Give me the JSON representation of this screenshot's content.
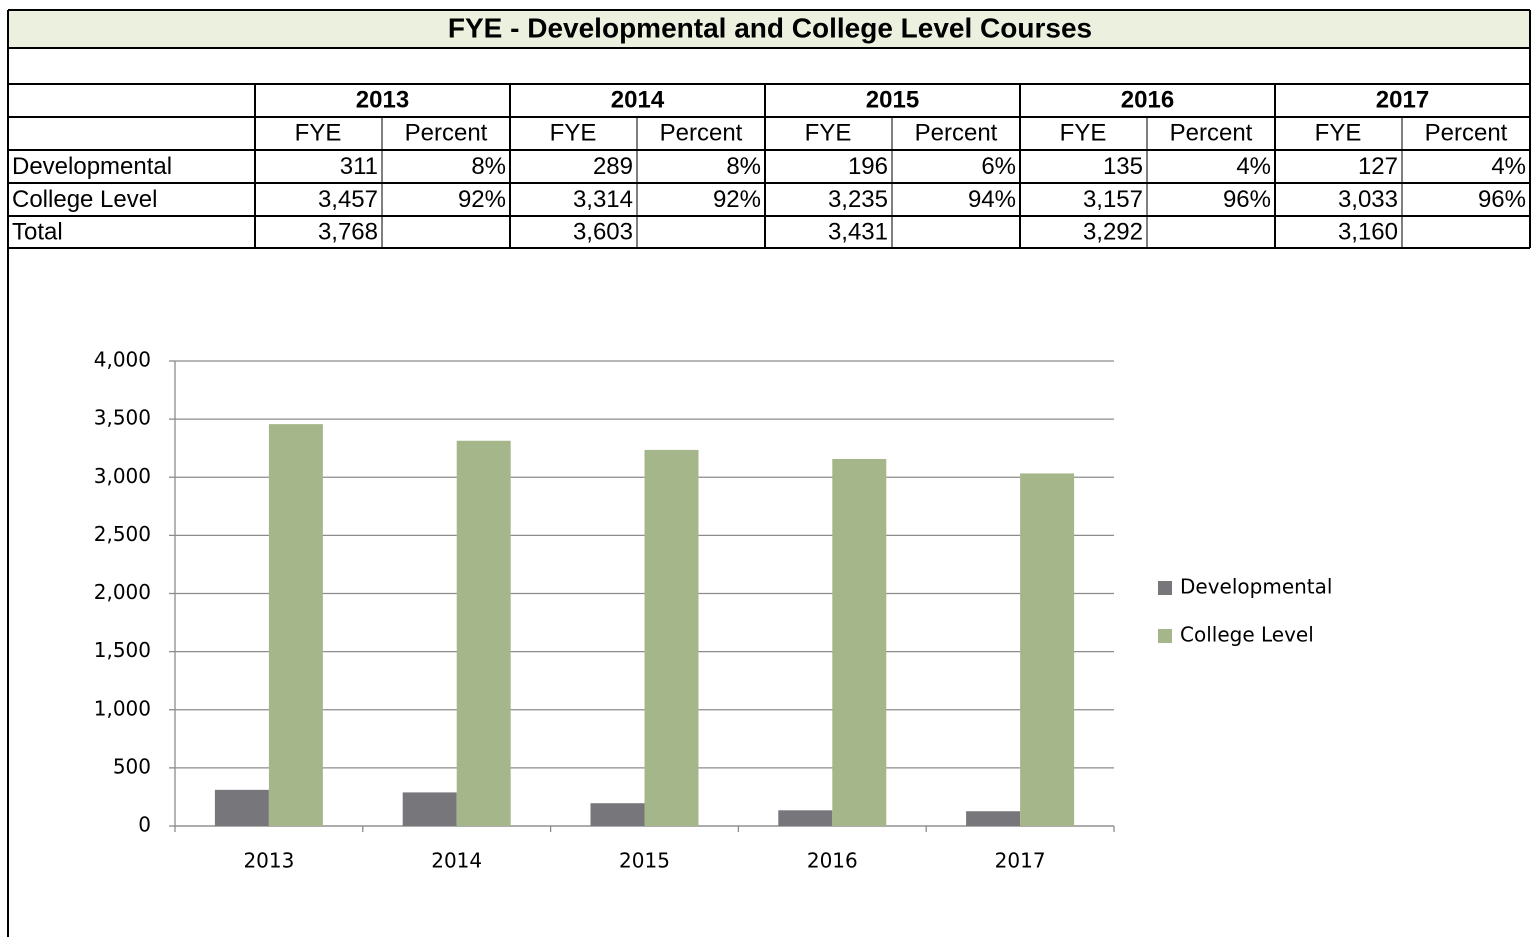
{
  "table": {
    "title": "FYE - Developmental and College Level Courses",
    "years": [
      "2013",
      "2014",
      "2015",
      "2016",
      "2017"
    ],
    "columns": [
      "FYE",
      "Percent",
      "FYE",
      "Percent",
      "FYE",
      "Percent",
      "FYE",
      "Percent",
      "FYE",
      "Percent"
    ],
    "rows": [
      {
        "label": "Developmental",
        "fye": [
          "311",
          "289",
          "196",
          "135",
          "127"
        ],
        "percent": [
          "8%",
          "8%",
          "6%",
          "4%",
          "4%"
        ]
      },
      {
        "label": "College Level",
        "fye": [
          "3,457",
          "3,314",
          "3,235",
          "3,157",
          "3,033"
        ],
        "percent": [
          "92%",
          "92%",
          "94%",
          "96%",
          "96%"
        ]
      },
      {
        "label": "Total",
        "fye": [
          "3,768",
          "3,603",
          "3,431",
          "3,292",
          "3,160"
        ]
      }
    ]
  },
  "chart_data": {
    "type": "bar",
    "categories": [
      "2013",
      "2014",
      "2015",
      "2016",
      "2017"
    ],
    "series": [
      {
        "name": "Developmental",
        "color": "#77767b",
        "values": [
          311,
          289,
          196,
          135,
          127
        ]
      },
      {
        "name": "College Level",
        "color": "#a5b78a",
        "values": [
          3457,
          3314,
          3235,
          3157,
          3033
        ]
      }
    ],
    "ylim": [
      0,
      4000
    ],
    "yticks": [
      0,
      500,
      {
        "value": 1000,
        "label": "1,000"
      },
      {
        "value": 1500,
        "label": "1,500"
      },
      {
        "value": 2000,
        "label": "2,000"
      },
      {
        "value": 2500,
        "label": "2,500"
      },
      {
        "value": 3000,
        "label": "3,000"
      },
      {
        "value": 3500,
        "label": "3,500"
      },
      {
        "value": 4000,
        "label": "4,000"
      }
    ],
    "grid": true,
    "legend": "right"
  }
}
